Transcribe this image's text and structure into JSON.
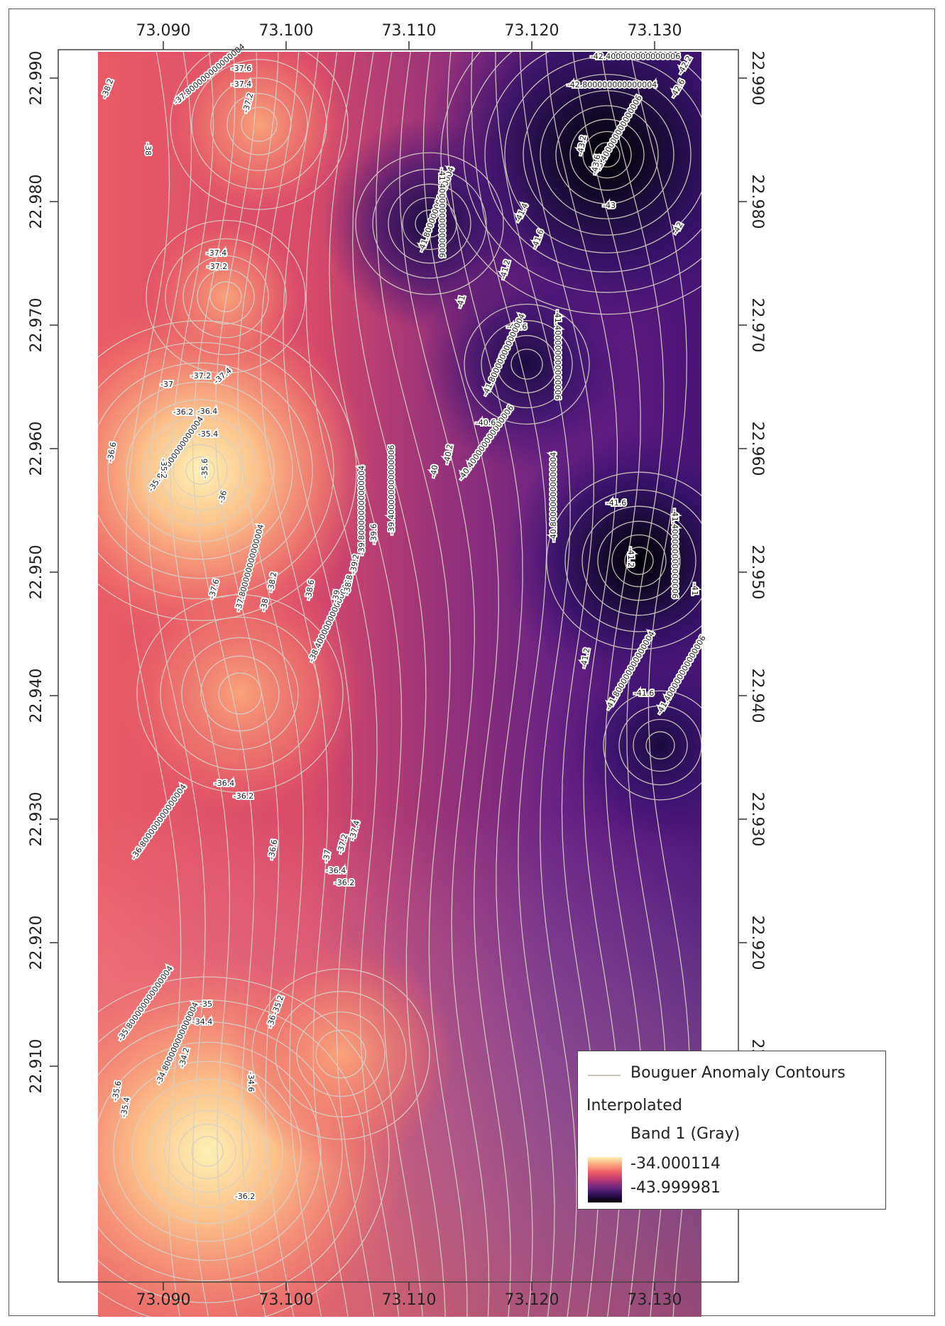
{
  "map": {
    "x_ticks": [
      "73.090",
      "73.100",
      "73.110",
      "73.120",
      "73.130"
    ],
    "y_ticks": [
      "22.990",
      "22.980",
      "22.970",
      "22.960",
      "22.950",
      "22.940",
      "22.930",
      "22.920",
      "22.910"
    ],
    "colormap": [
      "#fcf1b5",
      "#fba57f",
      "#ee5d68",
      "#b9386f",
      "#6f2882",
      "#2a0f55",
      "#000004"
    ],
    "contour_color": "#d8cfc4",
    "contour_labels": [
      "-38.2",
      "-37.800000000000004",
      "-37.6",
      "-37.4",
      "-37.2",
      "-38",
      "-42.400000000000006",
      "-42.2",
      "-42.6",
      "-42.800000000000004",
      "-43.400000000000006",
      "-43.2",
      "-43.6",
      "-43",
      "-42",
      "-41.6",
      "-41.4",
      "-41.800000000000004",
      "-41.400000000000006",
      "-41.2",
      "-41",
      "-37.4",
      "-37.2",
      "-41.6",
      "-41.800000000000004",
      "-41.400000000000006",
      "-37",
      "-37.2",
      "-37.4",
      "-36.2",
      "-36.4",
      "-36.6",
      "-35.4",
      "-35.800000000000004",
      "-35.2",
      "-35.6",
      "-36",
      "-40.400000000000006",
      "-40.6",
      "-40.2",
      "-40",
      "-40.800000000000004",
      "-39.800000000000004",
      "-39.6",
      "-39.400000000000006",
      "-41.6",
      "-41.400000000000006",
      "-41.2",
      "-41",
      "-37.6",
      "-37.800000000000004",
      "-38",
      "-38.2",
      "-38.6",
      "-38.400000000000006",
      "-38.8",
      "-39",
      "-39.2",
      "-41.6",
      "-41.2",
      "-41.800000000000004",
      "-41.400000000000006",
      "-36.800000000000004",
      "-36.4",
      "-36.2",
      "-36.6",
      "-37",
      "-37.2",
      "-37.4",
      "-36.4",
      "-36.2",
      "-35.800000000000004",
      "-35",
      "-34.800000000000004",
      "-34.4",
      "-34.2",
      "-35.6",
      "-35.4",
      "-34.6",
      "-35.2",
      "-36.2",
      "-36"
    ]
  },
  "legend": {
    "contours_label": "Bouguer Anomaly Contours",
    "raster_title": "Interpolated",
    "band_label": "Band 1 (Gray)",
    "max_value": "-34.000114",
    "min_value": "-43.999981"
  }
}
